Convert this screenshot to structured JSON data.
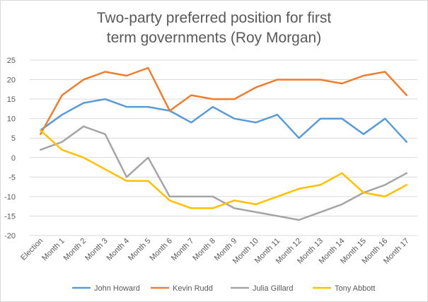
{
  "chart_data": {
    "type": "line",
    "title_lines": [
      "Two-party preferred position for first",
      "term governments (Roy Morgan)"
    ],
    "xlabel": "",
    "ylabel": "",
    "ylim": [
      -20,
      25
    ],
    "ytick_step": 5,
    "grid": true,
    "legend_position": "bottom",
    "categories": [
      "Election",
      "Month 1",
      "Month 2",
      "Month 3",
      "Month 4",
      "Month 5",
      "Month 6",
      "Month 7",
      "Month 8",
      "Month 9",
      "Month 10",
      "Month 11",
      "Month 12",
      "Month 13",
      "Month 14",
      "Month 15",
      "Month 16",
      "Month 17"
    ],
    "series": [
      {
        "name": "John Howard",
        "color": "#5b9bd5",
        "values": [
          7,
          11,
          14,
          15,
          13,
          13,
          12,
          9,
          13,
          10,
          9,
          11,
          5,
          10,
          10,
          6,
          10,
          4
        ]
      },
      {
        "name": "Kevin Rudd",
        "color": "#ed7d31",
        "values": [
          6,
          16,
          20,
          22,
          21,
          23,
          12,
          16,
          15,
          15,
          18,
          20,
          20,
          20,
          19,
          21,
          22,
          16
        ]
      },
      {
        "name": "Julia Gillard",
        "color": "#a5a5a5",
        "values": [
          2,
          4,
          8,
          6,
          -5,
          0,
          -10,
          -10,
          -10,
          -13,
          -14,
          -15,
          -16,
          -14,
          -12,
          -9,
          -7,
          -4
        ]
      },
      {
        "name": "Tony Abbott",
        "color": "#ffc000",
        "values": [
          7,
          2,
          0,
          -3,
          -6,
          -6,
          -11,
          -13,
          -13,
          -11,
          -12,
          -10,
          -8,
          -7,
          -4,
          -9,
          -10,
          -7
        ]
      }
    ]
  }
}
